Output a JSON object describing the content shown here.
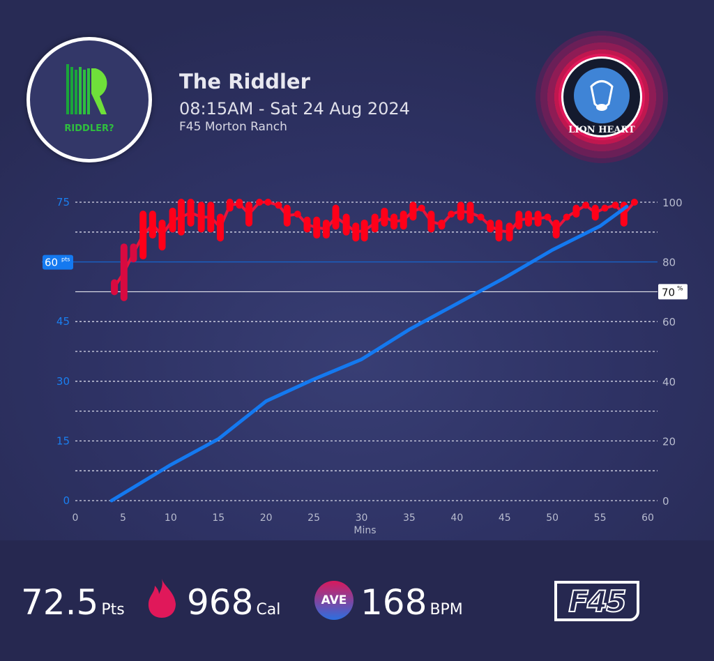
{
  "header": {
    "title": "The Riddler",
    "datetime": "08:15AM - Sat 24 Aug 2024",
    "location": "F45 Morton Ranch",
    "left_logo_text": "RIDDLER?",
    "right_logo_text": "LION HEART"
  },
  "colors": {
    "points_line": "#1479f0",
    "heart_rate": "#ff0019",
    "target_line": "#1a5fc0",
    "threshold_line": "#ffffff"
  },
  "chart_data": {
    "type": "line",
    "xlabel": "Mins",
    "x_ticks": [
      0,
      5,
      10,
      15,
      20,
      25,
      30,
      35,
      40,
      45,
      50,
      55,
      60
    ],
    "xlim": [
      0,
      60
    ],
    "left_axis": {
      "ticks": [
        0,
        15,
        30,
        45,
        75
      ],
      "ylim": [
        0,
        75
      ]
    },
    "right_axis": {
      "ticks": [
        0,
        20,
        40,
        60,
        80,
        100
      ],
      "ylim": [
        0,
        100
      ]
    },
    "target_points": {
      "value": 60,
      "label": "60",
      "unit": "pts"
    },
    "threshold_percent": {
      "value": 70,
      "label": "70",
      "unit": "%"
    },
    "series": [
      {
        "axis": "left",
        "points": [
          [
            3.8,
            0
          ],
          [
            10,
            9
          ],
          [
            15,
            15.5
          ],
          [
            20,
            25
          ],
          [
            25,
            30.5
          ],
          [
            30,
            35.5
          ],
          [
            35,
            43
          ],
          [
            40,
            49.5
          ],
          [
            45,
            56
          ],
          [
            50,
            63
          ],
          [
            55,
            69
          ],
          [
            57.8,
            73.9
          ]
        ]
      },
      {
        "axis": "right",
        "hr_ranges": [
          [
            4.1,
            73,
            70
          ],
          [
            5.1,
            85,
            68
          ],
          [
            6.1,
            85,
            81
          ],
          [
            7.1,
            96,
            82
          ],
          [
            8.1,
            96,
            89
          ],
          [
            9.1,
            93,
            85
          ],
          [
            10.2,
            97,
            91
          ],
          [
            11.1,
            100,
            90
          ],
          [
            12.1,
            100,
            93
          ],
          [
            13.2,
            99,
            91
          ],
          [
            14.2,
            99,
            91
          ],
          [
            15.2,
            95,
            88
          ],
          [
            16.2,
            100,
            98
          ],
          [
            17.2,
            100,
            99
          ],
          [
            18.2,
            99,
            93
          ],
          [
            19.3,
            100,
            100
          ],
          [
            20.2,
            100,
            100
          ],
          [
            21.3,
            99,
            99
          ],
          [
            22.2,
            98,
            93
          ],
          [
            23.3,
            96,
            96
          ],
          [
            24.3,
            94,
            91
          ],
          [
            25.3,
            94,
            89
          ],
          [
            26.3,
            93,
            89
          ],
          [
            27.3,
            98,
            92
          ],
          [
            28.4,
            95,
            90
          ],
          [
            29.4,
            92,
            88
          ],
          [
            30.3,
            93,
            88
          ],
          [
            31.4,
            95,
            91
          ],
          [
            32.4,
            97,
            93
          ],
          [
            33.4,
            95,
            92
          ],
          [
            34.4,
            96,
            92
          ],
          [
            35.4,
            99,
            95
          ],
          [
            36.3,
            98,
            98
          ],
          [
            37.3,
            96,
            91
          ],
          [
            38.4,
            93,
            92
          ],
          [
            39.4,
            96,
            96
          ],
          [
            40.4,
            99,
            95
          ],
          [
            41.4,
            99,
            94
          ],
          [
            42.5,
            95,
            95
          ],
          [
            43.5,
            93,
            91
          ],
          [
            44.4,
            93,
            88
          ],
          [
            45.5,
            92,
            88
          ],
          [
            46.5,
            96,
            92
          ],
          [
            47.5,
            96,
            93
          ],
          [
            48.5,
            96,
            93
          ],
          [
            49.5,
            95,
            95
          ],
          [
            50.4,
            93,
            89
          ],
          [
            51.5,
            95,
            95
          ],
          [
            52.5,
            98,
            96
          ],
          [
            53.5,
            99,
            99
          ],
          [
            54.5,
            98,
            95
          ],
          [
            55.5,
            98,
            98
          ],
          [
            56.6,
            99,
            99
          ],
          [
            57.5,
            99,
            93
          ],
          [
            58.6,
            100,
            100
          ]
        ]
      }
    ]
  },
  "stats": {
    "points": "72.5",
    "points_unit": "Pts",
    "calories": "968",
    "calories_unit": "Cal",
    "ave_label": "AVE",
    "bpm": "168",
    "bpm_unit": "BPM"
  },
  "footer_logo": "F45"
}
